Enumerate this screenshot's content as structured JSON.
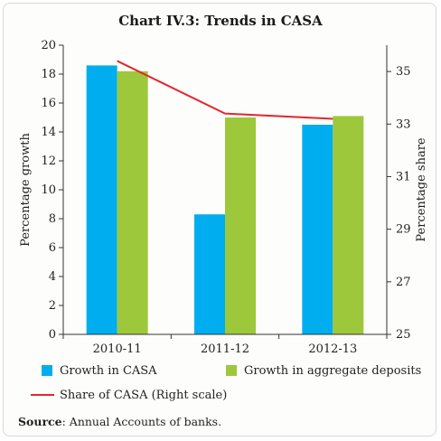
{
  "title": "Chart IV.3: Trends in CASA",
  "source_label": "Source",
  "source_text": ": Annual Accounts of banks.",
  "colors": {
    "casa": "#00AEEF",
    "deposits": "#9DC83C",
    "share": "#E3262E"
  },
  "chart_data": {
    "type": "bar",
    "categories": [
      "2010-11",
      "2011-12",
      "2012-13"
    ],
    "series": [
      {
        "name": "Growth in CASA",
        "type": "bar",
        "axis": "left",
        "values": [
          18.6,
          8.3,
          14.5
        ]
      },
      {
        "name": "Growth in aggregate deposits",
        "type": "bar",
        "axis": "left",
        "values": [
          18.2,
          15.0,
          15.1
        ]
      },
      {
        "name": "Share of CASA (Right scale)",
        "type": "line",
        "axis": "right",
        "values": [
          35.4,
          33.4,
          33.2
        ]
      }
    ],
    "ylabel": "Percentage growth",
    "y2label": "Percentage share",
    "ylim": [
      0,
      20
    ],
    "y2lim": [
      25,
      36
    ],
    "yticks": [
      "0",
      "2",
      "4",
      "6",
      "8",
      "10",
      "12",
      "14",
      "16",
      "18",
      "20"
    ],
    "y2ticks": [
      "25",
      "27",
      "29",
      "31",
      "33",
      "35"
    ],
    "legend_position": "bottom"
  }
}
